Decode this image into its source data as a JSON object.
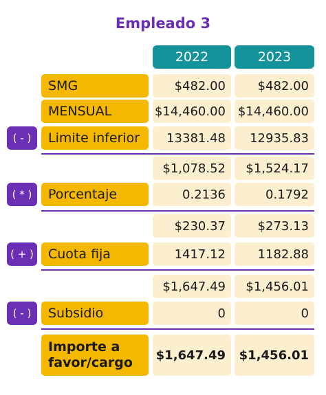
{
  "title": "Empleado 3",
  "headers": [
    "2022",
    "2023"
  ],
  "operators": [
    "( - )",
    "( * )",
    "( + )",
    "( - )"
  ],
  "rows": {
    "smg": {
      "label": "SMG",
      "v2022": "$482.00",
      "v2023": "$482.00"
    },
    "mensual": {
      "label": "MENSUAL",
      "v2022": "$14,460.00",
      "v2023": "$14,460.00"
    },
    "limite": {
      "label": "Limite inferior",
      "v2022": "13381.48",
      "v2023": "12935.83"
    },
    "excedente": {
      "v2022": "$1,078.52",
      "v2023": "$1,524.17"
    },
    "porcentaje": {
      "label": "Porcentaje",
      "v2022": "0.2136",
      "v2023": "0.1792"
    },
    "marginal": {
      "v2022": "$230.37",
      "v2023": "$273.13"
    },
    "cuota": {
      "label": "Cuota fija",
      "v2022": "1417.12",
      "v2023": "1182.88"
    },
    "isr": {
      "v2022": "$1,647.49",
      "v2023": "$1,456.01"
    },
    "subsidio": {
      "label": "Subsidio",
      "v2022": "0",
      "v2023": "0"
    },
    "importe": {
      "label": "Importe a\nfavor/cargo",
      "v2022": "$1,647.49",
      "v2023": "$1,456.01"
    }
  }
}
